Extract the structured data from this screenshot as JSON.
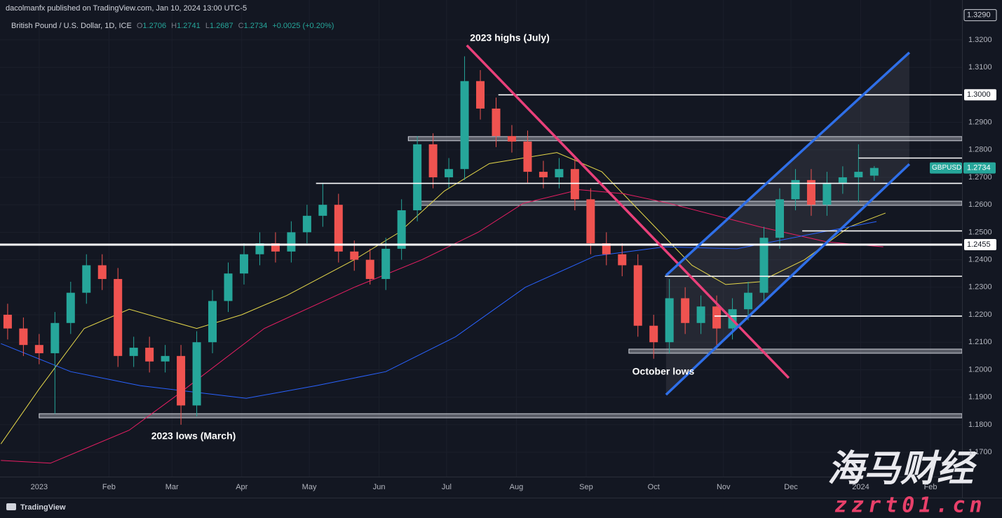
{
  "header": {
    "publisher": "dacolmanfx published on TradingView.com, Jan 10, 2024 13:00 UTC-5",
    "symbol": "British Pound / U.S. Dollar, 1D, ICE",
    "ohlc": [
      {
        "k": "O",
        "v": "1.2706"
      },
      {
        "k": "H",
        "v": "1.2741"
      },
      {
        "k": "L",
        "v": "1.2687"
      },
      {
        "k": "C",
        "v": "1.2734"
      }
    ],
    "change": "+0.0025 (+0.20%)"
  },
  "footer": {
    "brand": "TradingView"
  },
  "watermark": {
    "title": "海马财经",
    "url": "zzrt01.cn"
  },
  "chart_data": {
    "type": "candlestick",
    "up_color": "#26a69a",
    "down_color": "#ef5350",
    "xlim": [
      -17.4,
      410
    ],
    "ylim": [
      1.1611,
      1.3345
    ],
    "grid": true,
    "xticks": [
      {
        "value": 0,
        "label": "2023"
      },
      {
        "value": 31,
        "label": "Feb"
      },
      {
        "value": 59,
        "label": "Mar"
      },
      {
        "value": 90,
        "label": "Apr"
      },
      {
        "value": 120,
        "label": "May"
      },
      {
        "value": 151,
        "label": "Jun"
      },
      {
        "value": 181,
        "label": "Jul"
      },
      {
        "value": 212,
        "label": "Aug"
      },
      {
        "value": 243,
        "label": "Sep"
      },
      {
        "value": 273,
        "label": "Oct"
      },
      {
        "value": 304,
        "label": "Nov"
      },
      {
        "value": 334,
        "label": "Dec"
      },
      {
        "value": 365,
        "label": "2024"
      },
      {
        "value": 396,
        "label": "Feb"
      }
    ],
    "yticks": [
      {
        "value": 1.17,
        "label": "1.1700"
      },
      {
        "value": 1.18,
        "label": "1.1800"
      },
      {
        "value": 1.19,
        "label": "1.1900"
      },
      {
        "value": 1.2,
        "label": "1.2000"
      },
      {
        "value": 1.21,
        "label": "1.2100"
      },
      {
        "value": 1.22,
        "label": "1.2200"
      },
      {
        "value": 1.23,
        "label": "1.2300"
      },
      {
        "value": 1.24,
        "label": "1.2400"
      },
      {
        "value": 1.25,
        "label": "1.2500"
      },
      {
        "value": 1.26,
        "label": "1.2600"
      },
      {
        "value": 1.27,
        "label": "1.2700"
      },
      {
        "value": 1.28,
        "label": "1.2800"
      },
      {
        "value": 1.29,
        "label": "1.2900"
      },
      {
        "value": 1.3,
        "label": "1.3000"
      },
      {
        "value": 1.31,
        "label": "1.3100"
      },
      {
        "value": 1.32,
        "label": "1.3200"
      }
    ],
    "x": [
      -14,
      -7,
      0,
      7,
      14,
      21,
      28,
      35,
      42,
      49,
      56,
      63,
      70,
      77,
      84,
      91,
      98,
      105,
      112,
      119,
      126,
      133,
      140,
      147,
      154,
      161,
      168,
      175,
      182,
      189,
      196,
      203,
      210,
      217,
      224,
      231,
      238,
      245,
      252,
      259,
      266,
      273,
      280,
      287,
      294,
      301,
      308,
      315,
      322,
      329,
      336,
      343,
      350,
      357,
      364,
      371
    ],
    "open": [
      1.22,
      1.215,
      1.209,
      1.206,
      1.217,
      1.228,
      1.238,
      1.233,
      1.205,
      1.208,
      1.203,
      1.205,
      1.187,
      1.21,
      1.225,
      1.235,
      1.242,
      1.246,
      1.243,
      1.25,
      1.256,
      1.26,
      1.243,
      1.24,
      1.233,
      1.244,
      1.258,
      1.282,
      1.27,
      1.273,
      1.305,
      1.295,
      1.285,
      1.283,
      1.272,
      1.27,
      1.273,
      1.262,
      1.246,
      1.242,
      1.238,
      1.216,
      1.21,
      1.226,
      1.217,
      1.223,
      1.215,
      1.222,
      1.228,
      1.248,
      1.262,
      1.269,
      1.26,
      1.268,
      1.27,
      1.2706
    ],
    "high": [
      1.224,
      1.219,
      1.213,
      1.221,
      1.232,
      1.242,
      1.242,
      1.237,
      1.212,
      1.212,
      1.209,
      1.209,
      1.214,
      1.229,
      1.239,
      1.246,
      1.25,
      1.25,
      1.254,
      1.26,
      1.268,
      1.264,
      1.247,
      1.244,
      1.248,
      1.262,
      1.285,
      1.286,
      1.277,
      1.314,
      1.309,
      1.299,
      1.289,
      1.287,
      1.276,
      1.277,
      1.277,
      1.266,
      1.25,
      1.246,
      1.242,
      1.22,
      1.233,
      1.23,
      1.227,
      1.227,
      1.226,
      1.232,
      1.252,
      1.266,
      1.273,
      1.273,
      1.272,
      1.274,
      1.282,
      1.2741
    ],
    "low": [
      1.211,
      1.205,
      1.202,
      1.184,
      1.213,
      1.224,
      1.229,
      1.201,
      1.201,
      1.199,
      1.199,
      1.18,
      1.183,
      1.206,
      1.221,
      1.231,
      1.238,
      1.239,
      1.239,
      1.246,
      1.252,
      1.239,
      1.236,
      1.231,
      1.229,
      1.24,
      1.254,
      1.266,
      1.266,
      1.269,
      1.291,
      1.281,
      1.279,
      1.268,
      1.266,
      1.266,
      1.258,
      1.242,
      1.238,
      1.234,
      1.212,
      1.204,
      1.206,
      1.213,
      1.213,
      1.209,
      1.211,
      1.218,
      1.224,
      1.244,
      1.258,
      1.256,
      1.256,
      1.264,
      1.261,
      1.2687
    ],
    "close": [
      1.215,
      1.209,
      1.206,
      1.217,
      1.228,
      1.238,
      1.233,
      1.205,
      1.208,
      1.203,
      1.205,
      1.187,
      1.21,
      1.225,
      1.235,
      1.242,
      1.246,
      1.243,
      1.25,
      1.256,
      1.26,
      1.243,
      1.24,
      1.233,
      1.244,
      1.258,
      1.282,
      1.27,
      1.273,
      1.305,
      1.295,
      1.285,
      1.283,
      1.272,
      1.27,
      1.273,
      1.262,
      1.246,
      1.242,
      1.238,
      1.216,
      1.21,
      1.226,
      1.217,
      1.223,
      1.215,
      1.222,
      1.228,
      1.248,
      1.262,
      1.269,
      1.26,
      1.268,
      1.27,
      1.272,
      1.2734
    ],
    "moving_averages": [
      {
        "color": "#e6d84a",
        "x": [
          -17,
          0,
          20,
          40,
          70,
          90,
          110,
          140,
          160,
          180,
          200,
          230,
          250,
          270,
          290,
          305,
          320,
          340,
          360,
          376
        ],
        "values": [
          1.173,
          1.193,
          1.215,
          1.222,
          1.215,
          1.22,
          1.227,
          1.24,
          1.25,
          1.265,
          1.275,
          1.279,
          1.272,
          1.255,
          1.238,
          1.231,
          1.232,
          1.24,
          1.252,
          1.257
        ]
      },
      {
        "color": "#e91e63",
        "x": [
          -17,
          5,
          40,
          60,
          100,
          140,
          170,
          195,
          215,
          240,
          260,
          280,
          320,
          350,
          375
        ],
        "values": [
          1.167,
          1.166,
          1.178,
          1.19,
          1.215,
          1.23,
          1.24,
          1.25,
          1.2605,
          1.2655,
          1.264,
          1.2605,
          1.252,
          1.2465,
          1.2447
        ]
      },
      {
        "color": "#2962ff",
        "x": [
          -17,
          14,
          45,
          92,
          123,
          154,
          185,
          216,
          247,
          278,
          310,
          341,
          372
        ],
        "values": [
          1.2095,
          1.1993,
          1.1942,
          1.1896,
          1.1942,
          1.1993,
          1.212,
          1.23,
          1.2414,
          1.2447,
          1.244,
          1.249,
          1.2539
        ]
      }
    ],
    "levels": [
      {
        "value": 1.3,
        "from": 204
      },
      {
        "value": 1.2678,
        "from": 123
      },
      {
        "value": 1.2455,
        "from": -17.4,
        "bold": true
      },
      {
        "value": 1.277,
        "from": 364
      },
      {
        "value": 1.2505,
        "from": 339
      },
      {
        "value": 1.234,
        "from": 278
      },
      {
        "value": 1.2195,
        "from": 300
      }
    ],
    "zones": [
      {
        "low": 1.2833,
        "high": 1.2848,
        "from": 164
      },
      {
        "low": 1.2598,
        "high": 1.2613,
        "from": 169
      },
      {
        "low": 1.206,
        "high": 1.2075,
        "from": 262
      },
      {
        "low": 1.1825,
        "high": 1.184,
        "from": 0
      }
    ],
    "trendlines": [
      {
        "color": "#e9407a",
        "x": [
          190,
          333
        ],
        "y": [
          1.318,
          1.197
        ]
      },
      {
        "color": "#2f6fe8",
        "x": [
          278.5,
          386.6
        ],
        "y": [
          1.2343,
          1.3154
        ]
      },
      {
        "color": "#2f6fe8",
        "x": [
          278.5,
          386.6
        ],
        "y": [
          1.1909,
          1.2748
        ]
      }
    ],
    "annotations": [
      "2023 highs (July)",
      "October lows",
      "2023 lows (March)"
    ],
    "price_tags": [
      {
        "value": 1.329,
        "label": "1.3290"
      },
      {
        "value": 1.3,
        "label": "1.3000"
      },
      {
        "value": 1.2455,
        "label": "1.2455"
      }
    ],
    "last_price": {
      "symbol": "GBPUSD",
      "value": 1.2734,
      "label": "1.2734"
    }
  }
}
